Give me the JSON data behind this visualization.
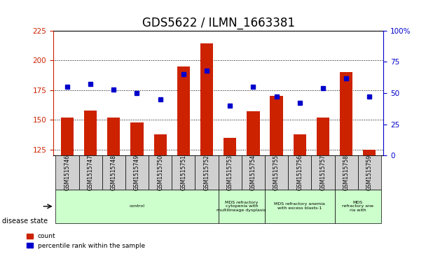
{
  "title": "GDS5622 / ILMN_1663381",
  "samples": [
    "GSM1515746",
    "GSM1515747",
    "GSM1515748",
    "GSM1515749",
    "GSM1515750",
    "GSM1515751",
    "GSM1515752",
    "GSM1515753",
    "GSM1515754",
    "GSM1515755",
    "GSM1515756",
    "GSM1515757",
    "GSM1515758",
    "GSM1515759"
  ],
  "count_values": [
    152,
    158,
    152,
    148,
    138,
    195,
    214,
    135,
    157,
    170,
    138,
    152,
    190,
    125
  ],
  "percentile_values": [
    55,
    57,
    53,
    50,
    45,
    65,
    68,
    40,
    55,
    47,
    42,
    54,
    62,
    47
  ],
  "ylim_left": [
    120,
    225
  ],
  "ylim_right": [
    0,
    100
  ],
  "yticks_left": [
    125,
    150,
    175,
    200,
    225
  ],
  "yticks_right": [
    0,
    25,
    50,
    75,
    100
  ],
  "bar_color": "#cc2200",
  "dot_color": "#0000cc",
  "grid_color": "#000000",
  "bg_color": "#ffffff",
  "tick_area_color": "#cccccc",
  "disease_groups": [
    {
      "label": "control",
      "start": 0,
      "end": 6,
      "color": "#ccffcc"
    },
    {
      "label": "MDS refractory\ncytopenia with\nmultilineage dysplasia",
      "start": 7,
      "end": 8,
      "color": "#ccffcc"
    },
    {
      "label": "MDS refractory anemia\nwith excess blasts-1",
      "start": 9,
      "end": 11,
      "color": "#ccffcc"
    },
    {
      "label": "MDS\nrefractory ane\nria with",
      "start": 12,
      "end": 13,
      "color": "#ccffcc"
    }
  ],
  "legend_count_label": "count",
  "legend_pct_label": "percentile rank within the sample",
  "disease_state_label": "disease state",
  "title_fontsize": 12,
  "axis_fontsize": 8,
  "tick_fontsize": 7.5
}
